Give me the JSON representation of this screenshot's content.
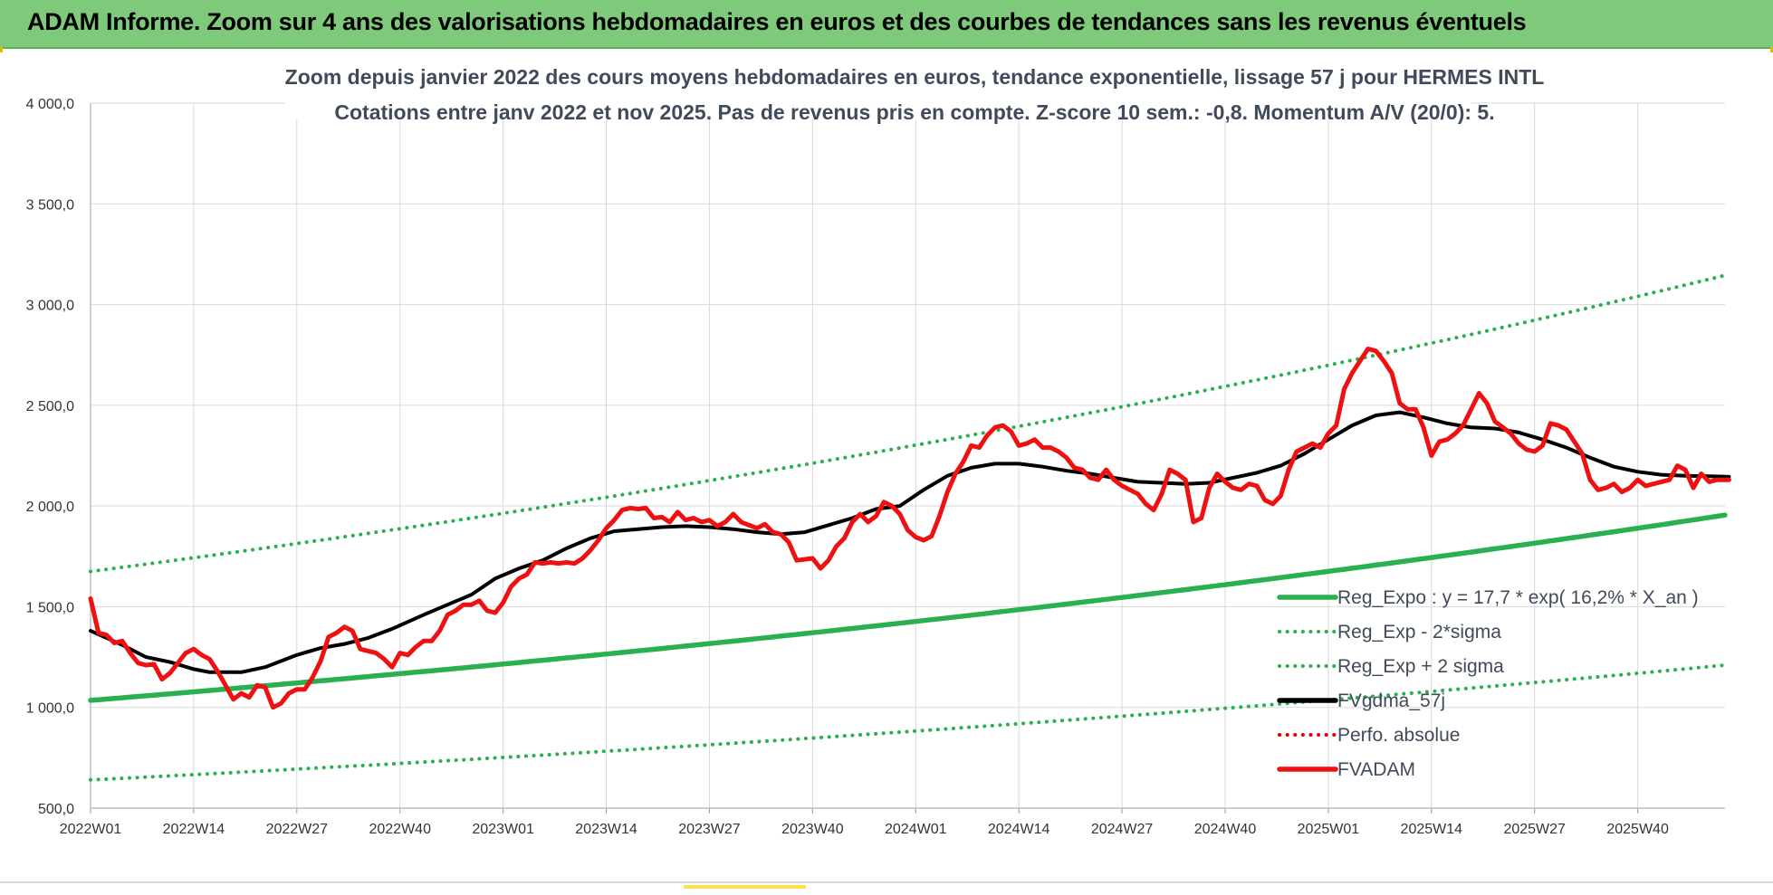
{
  "header": {
    "title": "ADAM Informe. Zoom sur 4 ans des valorisations hebdomadaires en euros et des courbes de tendances sans les revenus éventuels"
  },
  "chart_data": {
    "type": "line",
    "title": "Zoom depuis janvier 2022 des cours moyens hebdomadaires en euros, tendance exponentielle, lissage 57 j pour HERMES INTL",
    "subtitle": "Cotations entre janv 2022 et nov 2025. Pas de revenus pris en compte. Z-score 10 sem.: -0,8.  Momentum A/V (20/0): 5.",
    "ylim": [
      500,
      4000
    ],
    "y_ticks": [
      "500,0",
      "1 000,0",
      "1 500,0",
      "2 000,0",
      "2 500,0",
      "3 000,0",
      "3 500,0",
      "4 000,0"
    ],
    "y_tick_values": [
      500,
      1000,
      1500,
      2000,
      2500,
      3000,
      3500,
      4000
    ],
    "x_ticks": [
      "2022W01",
      "2022W14",
      "2022W27",
      "2022W40",
      "2023W01",
      "2023W14",
      "2023W27",
      "2023W40",
      "2024W01",
      "2024W14",
      "2024W27",
      "2024W40",
      "2025W01",
      "2025W14",
      "2025W27",
      "2025W40"
    ],
    "n_weeks": 206,
    "grid": "vertical and horizontal",
    "legend_position": "bottom-right",
    "legend": [
      {
        "label": "Reg_Expo : y = 17,7 * exp( 16,2% *  X_an )",
        "color": "#2ab050",
        "style": "solid"
      },
      {
        "label": "Reg_Exp - 2*sigma",
        "color": "#2ab050",
        "style": "dotted"
      },
      {
        "label": "Reg_Exp + 2 sigma",
        "color": "#2ab050",
        "style": "dotted"
      },
      {
        "label": "FVgdma_57j",
        "color": "#000000",
        "style": "solid"
      },
      {
        "label": "Perfo. absolue",
        "color": "#e00000",
        "style": "dotted"
      },
      {
        "label": "FVADAM",
        "color": "#ee1111",
        "style": "solid"
      }
    ],
    "series": [
      {
        "name": "Reg_Expo : y = 17,7 * exp( 16,2% *  X_an )",
        "kind": "exp",
        "start": 1035,
        "end": 1955,
        "color": "#2ab050"
      },
      {
        "name": "Reg_Exp - 2*sigma",
        "kind": "exp",
        "start": 640,
        "end": 1210,
        "color": "#2ab050"
      },
      {
        "name": "Reg_Exp + 2 sigma",
        "kind": "exp",
        "start": 1675,
        "end": 3145,
        "color": "#2ab050"
      },
      {
        "name": "FVgdma_57j",
        "color": "#000000",
        "points": [
          [
            0,
            1380
          ],
          [
            8,
            1310
          ],
          [
            14,
            1250
          ],
          [
            20,
            1225
          ],
          [
            26,
            1190
          ],
          [
            30,
            1175
          ],
          [
            38,
            1175
          ],
          [
            44,
            1200
          ],
          [
            52,
            1260
          ],
          [
            58,
            1295
          ],
          [
            64,
            1315
          ],
          [
            70,
            1345
          ],
          [
            76,
            1390
          ],
          [
            84,
            1460
          ],
          [
            90,
            1510
          ],
          [
            96,
            1560
          ],
          [
            102,
            1640
          ],
          [
            108,
            1690
          ],
          [
            114,
            1730
          ],
          [
            120,
            1790
          ],
          [
            126,
            1840
          ],
          [
            132,
            1875
          ],
          [
            138,
            1885
          ],
          [
            144,
            1895
          ],
          [
            150,
            1900
          ],
          [
            156,
            1895
          ],
          [
            162,
            1885
          ],
          [
            168,
            1870
          ],
          [
            174,
            1860
          ],
          [
            180,
            1870
          ],
          [
            186,
            1905
          ],
          [
            192,
            1940
          ],
          [
            198,
            1985
          ],
          [
            204,
            2000
          ],
          [
            210,
            2080
          ],
          [
            216,
            2150
          ],
          [
            222,
            2190
          ],
          [
            228,
            2210
          ],
          [
            234,
            2210
          ],
          [
            240,
            2195
          ],
          [
            246,
            2175
          ],
          [
            252,
            2160
          ],
          [
            258,
            2140
          ],
          [
            264,
            2120
          ],
          [
            270,
            2115
          ],
          [
            276,
            2110
          ],
          [
            282,
            2115
          ],
          [
            288,
            2140
          ],
          [
            294,
            2165
          ],
          [
            300,
            2200
          ],
          [
            306,
            2260
          ],
          [
            312,
            2330
          ],
          [
            318,
            2400
          ],
          [
            324,
            2450
          ],
          [
            330,
            2465
          ],
          [
            336,
            2440
          ],
          [
            342,
            2410
          ],
          [
            348,
            2390
          ],
          [
            354,
            2385
          ],
          [
            360,
            2365
          ],
          [
            366,
            2330
          ],
          [
            372,
            2290
          ],
          [
            378,
            2240
          ],
          [
            384,
            2195
          ],
          [
            390,
            2170
          ],
          [
            396,
            2155
          ],
          [
            402,
            2150
          ],
          [
            408,
            2148
          ],
          [
            413,
            2145
          ]
        ]
      },
      {
        "name": "FVADAM",
        "color": "#ee1111",
        "points": [
          [
            0,
            1540
          ],
          [
            2,
            1370
          ],
          [
            4,
            1360
          ],
          [
            6,
            1320
          ],
          [
            8,
            1330
          ],
          [
            10,
            1270
          ],
          [
            12,
            1220
          ],
          [
            14,
            1210
          ],
          [
            16,
            1215
          ],
          [
            18,
            1140
          ],
          [
            20,
            1170
          ],
          [
            22,
            1220
          ],
          [
            24,
            1270
          ],
          [
            26,
            1290
          ],
          [
            28,
            1260
          ],
          [
            30,
            1240
          ],
          [
            32,
            1180
          ],
          [
            34,
            1110
          ],
          [
            36,
            1040
          ],
          [
            38,
            1070
          ],
          [
            40,
            1050
          ],
          [
            42,
            1110
          ],
          [
            44,
            1100
          ],
          [
            46,
            1000
          ],
          [
            48,
            1020
          ],
          [
            50,
            1070
          ],
          [
            52,
            1090
          ],
          [
            54,
            1090
          ],
          [
            56,
            1150
          ],
          [
            58,
            1230
          ],
          [
            60,
            1350
          ],
          [
            62,
            1370
          ],
          [
            64,
            1400
          ],
          [
            66,
            1380
          ],
          [
            68,
            1290
          ],
          [
            70,
            1280
          ],
          [
            72,
            1270
          ],
          [
            74,
            1240
          ],
          [
            76,
            1200
          ],
          [
            78,
            1270
          ],
          [
            80,
            1260
          ],
          [
            82,
            1300
          ],
          [
            84,
            1330
          ],
          [
            86,
            1330
          ],
          [
            88,
            1380
          ],
          [
            90,
            1460
          ],
          [
            92,
            1480
          ],
          [
            94,
            1510
          ],
          [
            96,
            1510
          ],
          [
            98,
            1530
          ],
          [
            100,
            1480
          ],
          [
            102,
            1470
          ],
          [
            104,
            1520
          ],
          [
            106,
            1600
          ],
          [
            108,
            1640
          ],
          [
            110,
            1660
          ],
          [
            112,
            1720
          ],
          [
            114,
            1715
          ],
          [
            116,
            1720
          ],
          [
            118,
            1715
          ],
          [
            120,
            1720
          ],
          [
            122,
            1715
          ],
          [
            124,
            1740
          ],
          [
            126,
            1780
          ],
          [
            128,
            1830
          ],
          [
            130,
            1890
          ],
          [
            132,
            1930
          ],
          [
            134,
            1980
          ],
          [
            136,
            1990
          ],
          [
            138,
            1985
          ],
          [
            140,
            1990
          ],
          [
            142,
            1940
          ],
          [
            144,
            1945
          ],
          [
            146,
            1920
          ],
          [
            148,
            1970
          ],
          [
            150,
            1930
          ],
          [
            152,
            1940
          ],
          [
            154,
            1920
          ],
          [
            156,
            1930
          ],
          [
            158,
            1900
          ],
          [
            160,
            1920
          ],
          [
            162,
            1960
          ],
          [
            164,
            1920
          ],
          [
            166,
            1905
          ],
          [
            168,
            1890
          ],
          [
            170,
            1910
          ],
          [
            172,
            1870
          ],
          [
            174,
            1860
          ],
          [
            176,
            1820
          ],
          [
            178,
            1730
          ],
          [
            180,
            1735
          ],
          [
            182,
            1740
          ],
          [
            184,
            1690
          ],
          [
            186,
            1730
          ],
          [
            188,
            1800
          ],
          [
            190,
            1840
          ],
          [
            192,
            1920
          ],
          [
            194,
            1960
          ],
          [
            196,
            1920
          ],
          [
            198,
            1950
          ],
          [
            200,
            2020
          ],
          [
            202,
            2000
          ],
          [
            204,
            1960
          ],
          [
            206,
            1880
          ],
          [
            208,
            1845
          ],
          [
            210,
            1830
          ],
          [
            212,
            1850
          ],
          [
            214,
            1950
          ],
          [
            216,
            2070
          ],
          [
            218,
            2160
          ],
          [
            220,
            2220
          ],
          [
            222,
            2300
          ],
          [
            224,
            2290
          ],
          [
            226,
            2350
          ],
          [
            228,
            2390
          ],
          [
            230,
            2400
          ],
          [
            232,
            2370
          ],
          [
            234,
            2300
          ],
          [
            236,
            2310
          ],
          [
            238,
            2330
          ],
          [
            240,
            2290
          ],
          [
            242,
            2290
          ],
          [
            244,
            2270
          ],
          [
            246,
            2240
          ],
          [
            248,
            2190
          ],
          [
            250,
            2180
          ],
          [
            252,
            2140
          ],
          [
            254,
            2130
          ],
          [
            256,
            2180
          ],
          [
            258,
            2130
          ],
          [
            260,
            2100
          ],
          [
            262,
            2080
          ],
          [
            264,
            2060
          ],
          [
            266,
            2010
          ],
          [
            268,
            1980
          ],
          [
            270,
            2060
          ],
          [
            272,
            2180
          ],
          [
            274,
            2160
          ],
          [
            276,
            2130
          ],
          [
            278,
            1920
          ],
          [
            280,
            1940
          ],
          [
            282,
            2090
          ],
          [
            284,
            2160
          ],
          [
            286,
            2120
          ],
          [
            288,
            2090
          ],
          [
            290,
            2080
          ],
          [
            292,
            2110
          ],
          [
            294,
            2100
          ],
          [
            296,
            2030
          ],
          [
            298,
            2010
          ],
          [
            300,
            2050
          ],
          [
            302,
            2180
          ],
          [
            304,
            2270
          ],
          [
            306,
            2290
          ],
          [
            308,
            2310
          ],
          [
            310,
            2290
          ],
          [
            312,
            2360
          ],
          [
            314,
            2400
          ],
          [
            316,
            2580
          ],
          [
            318,
            2660
          ],
          [
            320,
            2720
          ],
          [
            322,
            2780
          ],
          [
            324,
            2770
          ],
          [
            326,
            2720
          ],
          [
            328,
            2660
          ],
          [
            330,
            2510
          ],
          [
            332,
            2480
          ],
          [
            334,
            2480
          ],
          [
            336,
            2390
          ],
          [
            338,
            2250
          ],
          [
            340,
            2320
          ],
          [
            342,
            2330
          ],
          [
            344,
            2360
          ],
          [
            346,
            2400
          ],
          [
            348,
            2480
          ],
          [
            350,
            2560
          ],
          [
            352,
            2510
          ],
          [
            354,
            2420
          ],
          [
            356,
            2390
          ],
          [
            358,
            2360
          ],
          [
            360,
            2310
          ],
          [
            362,
            2280
          ],
          [
            364,
            2270
          ],
          [
            366,
            2300
          ],
          [
            368,
            2410
          ],
          [
            370,
            2400
          ],
          [
            372,
            2380
          ],
          [
            374,
            2320
          ],
          [
            376,
            2260
          ],
          [
            378,
            2130
          ],
          [
            380,
            2080
          ],
          [
            382,
            2090
          ],
          [
            384,
            2110
          ],
          [
            386,
            2070
          ],
          [
            388,
            2090
          ],
          [
            390,
            2130
          ],
          [
            392,
            2100
          ],
          [
            394,
            2110
          ],
          [
            396,
            2120
          ],
          [
            398,
            2130
          ],
          [
            400,
            2200
          ],
          [
            402,
            2180
          ],
          [
            404,
            2090
          ],
          [
            406,
            2160
          ],
          [
            408,
            2120
          ],
          [
            410,
            2130
          ],
          [
            413,
            2130
          ]
        ]
      }
    ]
  }
}
